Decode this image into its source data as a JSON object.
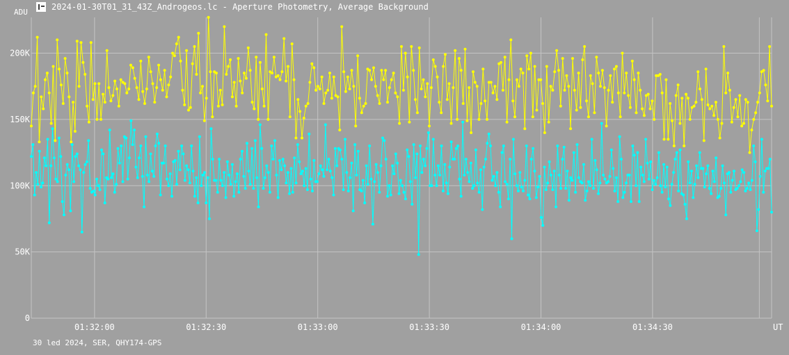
{
  "title": "2024-01-30T01_31_43Z_Androgeos.lc - Aperture Photometry, Average Background",
  "y_unit": "ADU",
  "x_unit": "UT",
  "footer": "30 led 2024, SER, QHY174-GPS",
  "colors": {
    "background": "#a0a0a0",
    "grid": "#c4c4c4",
    "series_a": "#ffff00",
    "series_b": "#00ffff"
  },
  "chart_data": {
    "type": "line",
    "x_start": "01:31:43",
    "x_end": "01:35:02",
    "xlim_seconds_from_start": [
      0,
      199
    ],
    "ylim": [
      0,
      227000
    ],
    "y_ticks": [
      0,
      50000,
      100000,
      150000,
      200000
    ],
    "y_tick_labels": [
      "0",
      "50K",
      "100K",
      "150K",
      "200K"
    ],
    "x_ticks": [
      "01:32:00",
      "01:32:30",
      "01:33:00",
      "01:33:30",
      "01:34:00",
      "01:34:30"
    ],
    "grid": true,
    "series": [
      {
        "color": "#ffff00",
        "markers": true,
        "values": [
          145000,
          170000,
          175000,
          212000,
          133000,
          167000,
          158000,
          180000,
          185000,
          170000,
          147000,
          190000,
          134000,
          210000,
          188000,
          176000,
          162000,
          196000,
          185000,
          167000,
          133000,
          163000,
          141000,
          209000,
          175000,
          208000,
          193000,
          184000,
          160000,
          148000,
          208000,
          165000,
          177000,
          150000,
          177000,
          150000,
          169000,
          163000,
          202000,
          174000,
          164000,
          168000,
          179000,
          173000,
          160000,
          180000,
          178000,
          177000,
          170000,
          173000,
          191000,
          189000,
          181000,
          174000,
          165000,
          194000,
          171000,
          162000,
          173000,
          197000,
          186000,
          177000,
          163000,
          174000,
          191000,
          180000,
          172000,
          187000,
          167000,
          176000,
          182000,
          200000,
          198000,
          207000,
          212000,
          194000,
          172000,
          161000,
          202000,
          157000,
          159000,
          192000,
          205000,
          184000,
          215000,
          170000,
          175000,
          149000,
          166000,
          227000,
          186000,
          152000,
          186000,
          185000,
          160000,
          172000,
          161000,
          220000,
          184000,
          190000,
          195000,
          167000,
          178000,
          160000,
          196000,
          179000,
          170000,
          185000,
          181000,
          204000,
          187000,
          163000,
          158000,
          197000,
          150000,
          193000,
          173000,
          160000,
          214000,
          150000,
          186000,
          185000,
          197000,
          182000,
          183000,
          180000,
          186000,
          211000,
          179000,
          190000,
          152000,
          207000,
          180000,
          136000,
          165000,
          156000,
          136000,
          151000,
          160000,
          162000,
          178000,
          192000,
          189000,
          172000,
          175000,
          173000,
          182000,
          162000,
          170000,
          172000,
          185000,
          166000,
          182000,
          168000,
          167000,
          142000,
          220000,
          186000,
          171000,
          182000,
          173000,
          187000,
          175000,
          145000,
          198000,
          166000,
          155000,
          160000,
          162000,
          188000,
          187000,
          180000,
          189000,
          175000,
          168000,
          162000,
          187000,
          180000,
          187000,
          163000,
          174000,
          180000,
          185000,
          170000,
          167000,
          147000,
          205000,
          172000,
          200000,
          182000,
          148000,
          205000,
          187000,
          165000,
          155000,
          204000,
          173000,
          180000,
          167000,
          177000,
          145000,
          174000,
          195000,
          190000,
          182000,
          163000,
          155000,
          190000,
          199000,
          165000,
          177000,
          147000,
          174000,
          202000,
          150000,
          196000,
          187000,
          162000,
          203000,
          149000,
          174000,
          140000,
          186000,
          178000,
          175000,
          150000,
          162000,
          188000,
          164000,
          150000,
          178000,
          178000,
          170000,
          175000,
          165000,
          192000,
          193000,
          172000,
          197000,
          148000,
          180000,
          210000,
          164000,
          152000,
          180000,
          175000,
          188000,
          185000,
          143000,
          198000,
          188000,
          200000,
          152000,
          190000,
          157000,
          180000,
          180000,
          162000,
          140000,
          190000,
          148000,
          175000,
          172000,
          186000,
          202000,
          187000,
          160000,
          196000,
          172000,
          183000,
          175000,
          143000,
          196000,
          172000,
          157000,
          185000,
          159000,
          195000,
          205000,
          164000,
          152000,
          183000,
          177000,
          155000,
          197000,
          185000,
          175000,
          187000,
          174000,
          145000,
          172000,
          183000,
          163000,
          188000,
          190000,
          170000,
          152000,
          200000,
          170000,
          185000,
          168000,
          159000,
          194000,
          180000,
          155000,
          185000,
          172000,
          158000,
          153000,
          168000,
          169000,
          158000,
          164000,
          150000,
          183000,
          183000,
          184000,
          170000,
          135000,
          180000,
          135000,
          162000,
          149000,
          130000,
          168000,
          176000,
          147000,
          166000,
          130000,
          169000,
          166000,
          150000,
          159000,
          160000,
          163000,
          186000,
          173000,
          165000,
          134000,
          188000,
          161000,
          158000,
          160000,
          153000,
          163000,
          150000,
          136000,
          147000,
          205000,
          170000,
          185000,
          172000,
          148000,
          159000,
          165000,
          152000,
          168000,
          145000,
          147000,
          165000,
          163000,
          125000,
          142000,
          150000,
          155000,
          163000,
          170000,
          186000,
          187000,
          176000,
          164000,
          205000,
          160000
        ]
      },
      {
        "color": "#00ffff",
        "markers": true,
        "values": [
          122000,
          131000,
          93000,
          110000,
          101000,
          126000,
          99000,
          102000,
          121000,
          115000,
          135000,
          72000,
          115000,
          143000,
          121000,
          105000,
          103000,
          136000,
          122000,
          88000,
          78000,
          108000,
          116000,
          112000,
          81000,
          131000,
          103000,
          122000,
          124000,
          115000,
          112000,
          65000,
          110000,
          116000,
          118000,
          134000,
          98000,
          95000,
          96000,
          93000,
          105000,
          100000,
          97000,
          127000,
          124000,
          87000,
          106000,
          105000,
          142000,
          106000,
          109000,
          95000,
          101000,
          128000,
          117000,
          130000,
          103000,
          137000,
          136000,
          105000,
          121000,
          149000,
          131000,
          142000,
          114000,
          106000,
          121000,
          130000,
          107000,
          84000,
          137000,
          108000,
          103000,
          124000,
          111000,
          107000,
          130000,
          139000,
          132000,
          93000,
          117000,
          117000,
          130000,
          105000,
          100000,
          109000,
          92000,
          118000,
          119000,
          101000,
          126000,
          112000,
          130000,
          124000,
          104000,
          115000,
          112000,
          102000,
          130000,
          111000,
          92000,
          106000,
          87000,
          137000,
          100000,
          108000,
          110000,
          87000,
          106000,
          75000,
          143000,
          120000,
          104000,
          104000,
          95000,
          120000,
          104000,
          100000,
          110000,
          91000,
          118000,
          108000,
          101000,
          116000,
          92000,
          103000,
          109000,
          95000,
          120000,
          126000,
          107000,
          98000,
          132000,
          111000,
          101000,
          128000,
          98000,
          134000,
          106000,
          84000,
          146000,
          128000,
          98000,
          106000,
          115000,
          110000,
          95000,
          130000,
          120000,
          134000,
          108000,
          91000,
          119000,
          112000,
          120000,
          115000,
          102000,
          110000,
          94000,
          113000,
          95000,
          121000,
          102000,
          131000,
          118000,
          109000,
          111000,
          100000,
          113000,
          97000,
          139000,
          105000,
          96000,
          119000,
          103000,
          103000,
          109000,
          115000,
          112000,
          107000,
          146000,
          112000,
          120000,
          111000,
          106000,
          93000,
          128000,
          115000,
          128000,
          127000,
          120000,
          97000,
          135000,
          110000,
          96000,
          106000,
          117000,
          81000,
          131000,
          108000,
          126000,
          97000,
          96000,
          104000,
          87000,
          115000,
          101000,
          130000,
          105000,
          71000,
          103000,
          116000,
          110000,
          95000,
          115000,
          136000,
          134000,
          120000,
          92000,
          100000,
          93000,
          115000,
          109000,
          124000,
          117000,
          94000,
          104000,
          100000,
          95000,
          90000,
          127000,
          122000,
          103000,
          86000,
          131000,
          106000,
          124000,
          48000,
          130000,
          110000,
          120000,
          115000,
          128000,
          140000,
          100000,
          100000,
          135000,
          108000,
          100000,
          115000,
          108000,
          130000,
          96000,
          116000,
          102000,
          94000,
          114000,
          133000,
          120000,
          120000,
          128000,
          130000,
          105000,
          92000,
          148000,
          108000,
          120000,
          110000,
          103000,
          117000,
          98000,
          100000,
          127000,
          102000,
          95000,
          112000,
          82000,
          114000,
          120000,
          132000,
          139000,
          130000,
          104000,
          107000,
          100000,
          110000,
          95000,
          84000,
          125000,
          130000,
          103000,
          101000,
          90000,
          120000,
          60000,
          135000,
          109000,
          100000,
          96000,
          110000,
          99000,
          96000,
          104000,
          130000,
          93000,
          90000,
          120000,
          128000,
          111000,
          91000,
          99000,
          107000,
          76000,
          70000,
          114000,
          97000,
          102000,
          118000,
          108000,
          97000,
          111000,
          84000,
          130000,
          108000,
          98000,
          120000,
          129000,
          98000,
          111000,
          89000,
          106000,
          104000,
          125000,
          95000,
          131000,
          106000,
          103000,
          102000,
          116000,
          89000,
          96000,
          103000,
          100000,
          135000,
          98000,
          119000,
          112000,
          94000,
          102000,
          147000,
          108000,
          105000,
          102000,
          103000,
          107000,
          127000,
          113000,
          96000,
          106000,
          88000,
          137000,
          120000,
          91000,
          95000,
          102000,
          108000,
          108000,
          88000,
          130000,
          123000,
          100000,
          125000,
          88000,
          114000,
          108000,
          103000,
          135000,
          117000,
          105000,
          118000,
          97000,
          104000,
          101000,
          106000,
          125000,
          100000,
          95000,
          116000,
          99000,
          114000,
          90000,
          85000,
          101000,
          110000,
          120000,
          125000,
          96000,
          127000,
          94000,
          93000,
          86000,
          75000,
          118000,
          102000,
          111000,
          91000,
          101000,
          115000,
          106000,
          125000,
          113000,
          113000,
          99000,
          109000,
          115000,
          98000,
          94000,
          111000,
          103000,
          121000,
          91000,
          92000,
          98000,
          115000,
          102000,
          78000,
          109000,
          110000,
          95000,
          104000,
          111000,
          97000,
          98000,
          100000,
          103000,
          112000,
          110000,
          96000,
          98000,
          102000,
          97000,
          104000,
          130000,
          118000,
          66000,
          82000,
          107000,
          135000,
          95000,
          111000,
          113000,
          113000,
          120000,
          80000
        ]
      }
    ]
  }
}
